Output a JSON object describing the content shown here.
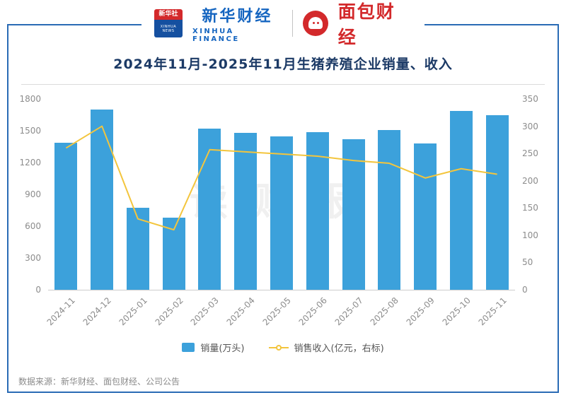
{
  "header": {
    "agency_cn": "新华社",
    "agency_en": "XINHUA NEWS",
    "brand_cn": "新华财经",
    "brand_en": "XINHUA FINANCE",
    "bread_brand": "面包财经"
  },
  "title": "2024年11月-2025年11月生猪养殖企业销量、收入",
  "watermark": "读财报",
  "legend": [
    {
      "label": "销量(万头)",
      "type": "bar",
      "color": "#3ca1db"
    },
    {
      "label": "销售收入(亿元，右标)",
      "type": "line",
      "color": "#f3c53d"
    }
  ],
  "footer": "数据来源：新华财经、面包财经、公司公告",
  "chart_data": {
    "type": "bar",
    "subtype": "bar+line combo, dual axis",
    "title": "2024年11月-2025年11月生猪养殖企业销量、收入",
    "categories": [
      "2024-11",
      "2024-12",
      "2025-01",
      "2025-02",
      "2025-03",
      "2025-04",
      "2025-05",
      "2025-06",
      "2025-07",
      "2025-08",
      "2025-09",
      "2025-10",
      "2025-11"
    ],
    "series": [
      {
        "name": "销量(万头)",
        "type": "bar",
        "axis": "left",
        "color": "#3ca1db",
        "values": [
          1390,
          1700,
          775,
          680,
          1520,
          1480,
          1450,
          1490,
          1420,
          1510,
          1380,
          1690,
          1645
        ]
      },
      {
        "name": "销售收入(亿元，右标)",
        "type": "line",
        "axis": "right",
        "color": "#f3c53d",
        "values": [
          260,
          300,
          130,
          110,
          257,
          253,
          249,
          245,
          237,
          232,
          205,
          222,
          212
        ]
      }
    ],
    "left_axis": {
      "min": 0,
      "max": 1800,
      "step": 300
    },
    "right_axis": {
      "min": 0,
      "max": 350,
      "step": 50
    },
    "grid": false,
    "legend_position": "bottom"
  }
}
